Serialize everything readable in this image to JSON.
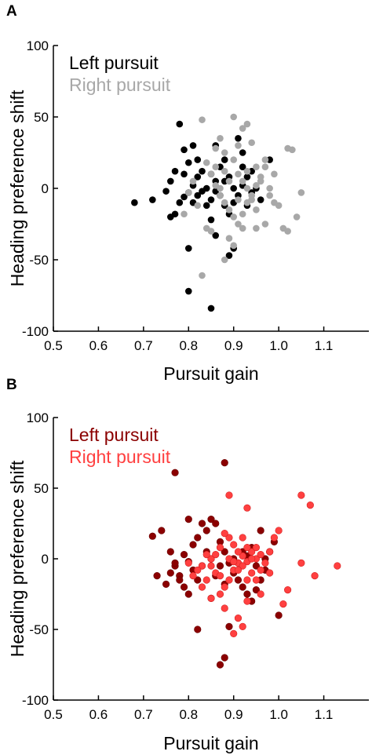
{
  "chart_data": [
    {
      "panel_label": "A",
      "type": "scatter",
      "xlabel": "Pursuit gain",
      "ylabel": "Heading preference shift",
      "xlim": [
        0.5,
        1.2
      ],
      "ylim": [
        -100,
        100
      ],
      "xticks": [
        "0.5",
        "0.6",
        "0.7",
        "0.8",
        "0.9",
        "1.0",
        "1.1"
      ],
      "yticks": [
        "100",
        "50",
        "0",
        "-50",
        "-100"
      ],
      "legend_position": "top-left",
      "grid": false,
      "series": [
        {
          "name": "Left pursuit",
          "color": "#000000",
          "points": [
            [
              0.78,
              45
            ],
            [
              0.79,
              27
            ],
            [
              0.81,
              30
            ],
            [
              0.8,
              18
            ],
            [
              0.77,
              12
            ],
            [
              0.76,
              5
            ],
            [
              0.75,
              -2
            ],
            [
              0.72,
              -8
            ],
            [
              0.68,
              -10
            ],
            [
              0.8,
              -3
            ],
            [
              0.79,
              -6
            ],
            [
              0.78,
              -10
            ],
            [
              0.77,
              -18
            ],
            [
              0.76,
              -20
            ],
            [
              0.81,
              2
            ],
            [
              0.82,
              8
            ],
            [
              0.83,
              12
            ],
            [
              0.82,
              -5
            ],
            [
              0.84,
              -12
            ],
            [
              0.85,
              -22
            ],
            [
              0.86,
              5
            ],
            [
              0.87,
              15
            ],
            [
              0.88,
              20
            ],
            [
              0.86,
              -2
            ],
            [
              0.85,
              -8
            ],
            [
              0.88,
              -12
            ],
            [
              0.89,
              -18
            ],
            [
              0.9,
              -10
            ],
            [
              0.91,
              -5
            ],
            [
              0.92,
              2
            ],
            [
              0.93,
              8
            ],
            [
              0.94,
              -3
            ],
            [
              0.92,
              15
            ],
            [
              0.93,
              -12
            ],
            [
              0.95,
              0
            ],
            [
              0.96,
              -8
            ],
            [
              0.98,
              20
            ],
            [
              0.8,
              -42
            ],
            [
              0.8,
              -72
            ],
            [
              0.85,
              -84
            ],
            [
              0.89,
              -47
            ],
            [
              0.9,
              -42
            ],
            [
              0.86,
              -33
            ],
            [
              0.79,
              10
            ],
            [
              0.81,
              -10
            ],
            [
              0.82,
              20
            ],
            [
              0.84,
              0
            ],
            [
              0.87,
              -5
            ],
            [
              0.91,
              35
            ],
            [
              0.92,
              25
            ],
            [
              0.83,
              -2
            ],
            [
              0.85,
              10
            ],
            [
              0.88,
              5
            ],
            [
              0.9,
              0
            ],
            [
              0.94,
              12
            ],
            [
              0.86,
              30
            ],
            [
              0.89,
              8
            ]
          ]
        },
        {
          "name": "Right pursuit",
          "color": "#a8a8a8",
          "points": [
            [
              0.83,
              48
            ],
            [
              0.9,
              50
            ],
            [
              0.92,
              42
            ],
            [
              0.91,
              30
            ],
            [
              0.94,
              32
            ],
            [
              0.93,
              45
            ],
            [
              0.88,
              25
            ],
            [
              0.87,
              35
            ],
            [
              0.86,
              28
            ],
            [
              0.84,
              18
            ],
            [
              0.85,
              10
            ],
            [
              0.86,
              2
            ],
            [
              0.87,
              -5
            ],
            [
              0.88,
              -10
            ],
            [
              0.89,
              -15
            ],
            [
              0.9,
              -20
            ],
            [
              0.91,
              -25
            ],
            [
              0.92,
              -18
            ],
            [
              0.93,
              -10
            ],
            [
              0.94,
              -5
            ],
            [
              0.95,
              2
            ],
            [
              0.96,
              8
            ],
            [
              0.97,
              15
            ],
            [
              0.98,
              0
            ],
            [
              0.99,
              -10
            ],
            [
              1.0,
              -12
            ],
            [
              1.01,
              -28
            ],
            [
              1.02,
              28
            ],
            [
              1.03,
              27
            ],
            [
              1.04,
              -20
            ],
            [
              1.05,
              -3
            ],
            [
              1.02,
              -30
            ],
            [
              0.97,
              -25
            ],
            [
              0.95,
              -28
            ],
            [
              0.92,
              -28
            ],
            [
              0.89,
              -35
            ],
            [
              0.88,
              -50
            ],
            [
              0.9,
              -40
            ],
            [
              0.85,
              -30
            ],
            [
              0.84,
              -28
            ],
            [
              0.83,
              -61
            ],
            [
              0.79,
              -18
            ],
            [
              0.8,
              -3
            ],
            [
              0.81,
              5
            ],
            [
              0.82,
              -12
            ],
            [
              0.86,
              15
            ],
            [
              0.88,
              12
            ],
            [
              0.9,
              20
            ],
            [
              0.91,
              10
            ],
            [
              0.92,
              5
            ],
            [
              0.93,
              0
            ],
            [
              0.94,
              -8
            ],
            [
              0.95,
              -15
            ],
            [
              0.96,
              5
            ],
            [
              0.97,
              20
            ],
            [
              0.98,
              -5
            ],
            [
              0.99,
              10
            ],
            [
              0.87,
              0
            ],
            [
              0.89,
              5
            ],
            [
              0.91,
              -8
            ],
            [
              0.93,
              12
            ],
            [
              0.95,
              15
            ]
          ]
        }
      ]
    },
    {
      "panel_label": "B",
      "type": "scatter",
      "xlabel": "Pursuit gain",
      "ylabel": "Heading preference shift",
      "xlim": [
        0.5,
        1.2
      ],
      "ylim": [
        -100,
        100
      ],
      "xticks": [
        "0.5",
        "0.6",
        "0.7",
        "0.8",
        "0.9",
        "1.0",
        "1.1"
      ],
      "yticks": [
        "100",
        "50",
        "0",
        "-50",
        "-100"
      ],
      "legend_position": "top-left",
      "grid": false,
      "series": [
        {
          "name": "Left pursuit",
          "color": "#8b0000",
          "points": [
            [
              0.77,
              61
            ],
            [
              0.88,
              68
            ],
            [
              0.72,
              16
            ],
            [
              0.74,
              20
            ],
            [
              0.76,
              5
            ],
            [
              0.77,
              -5
            ],
            [
              0.78,
              -12
            ],
            [
              0.79,
              -20
            ],
            [
              0.8,
              -2
            ],
            [
              0.81,
              10
            ],
            [
              0.82,
              15
            ],
            [
              0.83,
              25
            ],
            [
              0.84,
              20
            ],
            [
              0.85,
              28
            ],
            [
              0.86,
              25
            ],
            [
              0.87,
              12
            ],
            [
              0.88,
              5
            ],
            [
              0.89,
              -3
            ],
            [
              0.9,
              -10
            ],
            [
              0.91,
              -15
            ],
            [
              0.92,
              -20
            ],
            [
              0.93,
              -25
            ],
            [
              0.94,
              -30
            ],
            [
              0.95,
              -22
            ],
            [
              0.96,
              -15
            ],
            [
              0.97,
              -8
            ],
            [
              0.98,
              5
            ],
            [
              0.99,
              12
            ],
            [
              1.0,
              -40
            ],
            [
              0.89,
              -48
            ],
            [
              0.88,
              -70
            ],
            [
              0.87,
              -75
            ],
            [
              0.82,
              -50
            ],
            [
              0.8,
              -25
            ],
            [
              0.78,
              -15
            ],
            [
              0.76,
              -10
            ],
            [
              0.73,
              -12
            ],
            [
              0.75,
              -18
            ],
            [
              0.77,
              -3
            ],
            [
              0.79,
              3
            ],
            [
              0.81,
              -8
            ],
            [
              0.83,
              -5
            ],
            [
              0.85,
              0
            ],
            [
              0.86,
              -12
            ],
            [
              0.88,
              -18
            ],
            [
              0.9,
              0
            ],
            [
              0.92,
              5
            ],
            [
              0.94,
              8
            ],
            [
              0.96,
              20
            ],
            [
              0.8,
              28
            ],
            [
              0.84,
              5
            ],
            [
              0.87,
              -5
            ],
            [
              0.91,
              -3
            ],
            [
              0.93,
              2
            ],
            [
              0.95,
              -5
            ],
            [
              0.97,
              0
            ],
            [
              0.82,
              -15
            ],
            [
              0.85,
              -28
            ]
          ]
        },
        {
          "name": "Right pursuit",
          "color": "#ff4040",
          "points": [
            [
              0.89,
              45
            ],
            [
              0.93,
              36
            ],
            [
              1.05,
              45
            ],
            [
              1.07,
              38
            ],
            [
              1.13,
              -5
            ],
            [
              1.08,
              -12
            ],
            [
              1.05,
              -3
            ],
            [
              1.02,
              -22
            ],
            [
              1.01,
              -32
            ],
            [
              0.99,
              15
            ],
            [
              0.98,
              5
            ],
            [
              0.97,
              -3
            ],
            [
              0.96,
              -8
            ],
            [
              0.95,
              0
            ],
            [
              0.94,
              5
            ],
            [
              0.93,
              8
            ],
            [
              0.92,
              2
            ],
            [
              0.91,
              -3
            ],
            [
              0.9,
              -8
            ],
            [
              0.89,
              -15
            ],
            [
              0.88,
              -20
            ],
            [
              0.87,
              -25
            ],
            [
              0.86,
              -10
            ],
            [
              0.85,
              0
            ],
            [
              0.84,
              3
            ],
            [
              0.83,
              -5
            ],
            [
              0.82,
              -8
            ],
            [
              0.81,
              -12
            ],
            [
              0.8,
              -3
            ],
            [
              0.85,
              -28
            ],
            [
              0.88,
              -35
            ],
            [
              0.91,
              -42
            ],
            [
              0.92,
              -48
            ],
            [
              0.9,
              -53
            ],
            [
              0.93,
              -30
            ],
            [
              0.95,
              -15
            ],
            [
              0.96,
              -25
            ],
            [
              0.94,
              -10
            ],
            [
              0.93,
              -2
            ],
            [
              0.92,
              -5
            ],
            [
              0.91,
              5
            ],
            [
              0.9,
              10
            ],
            [
              0.89,
              15
            ],
            [
              0.88,
              18
            ],
            [
              0.87,
              8
            ],
            [
              0.86,
              3
            ],
            [
              0.85,
              -5
            ],
            [
              0.84,
              -15
            ],
            [
              0.83,
              -20
            ],
            [
              0.94,
              0
            ],
            [
              0.96,
              3
            ],
            [
              0.98,
              -10
            ],
            [
              1.0,
              20
            ],
            [
              0.95,
              8
            ],
            [
              0.89,
              0
            ],
            [
              0.91,
              -8
            ],
            [
              0.93,
              -15
            ],
            [
              0.92,
              15
            ],
            [
              0.9,
              -2
            ],
            [
              0.87,
              -12
            ]
          ]
        }
      ]
    }
  ]
}
